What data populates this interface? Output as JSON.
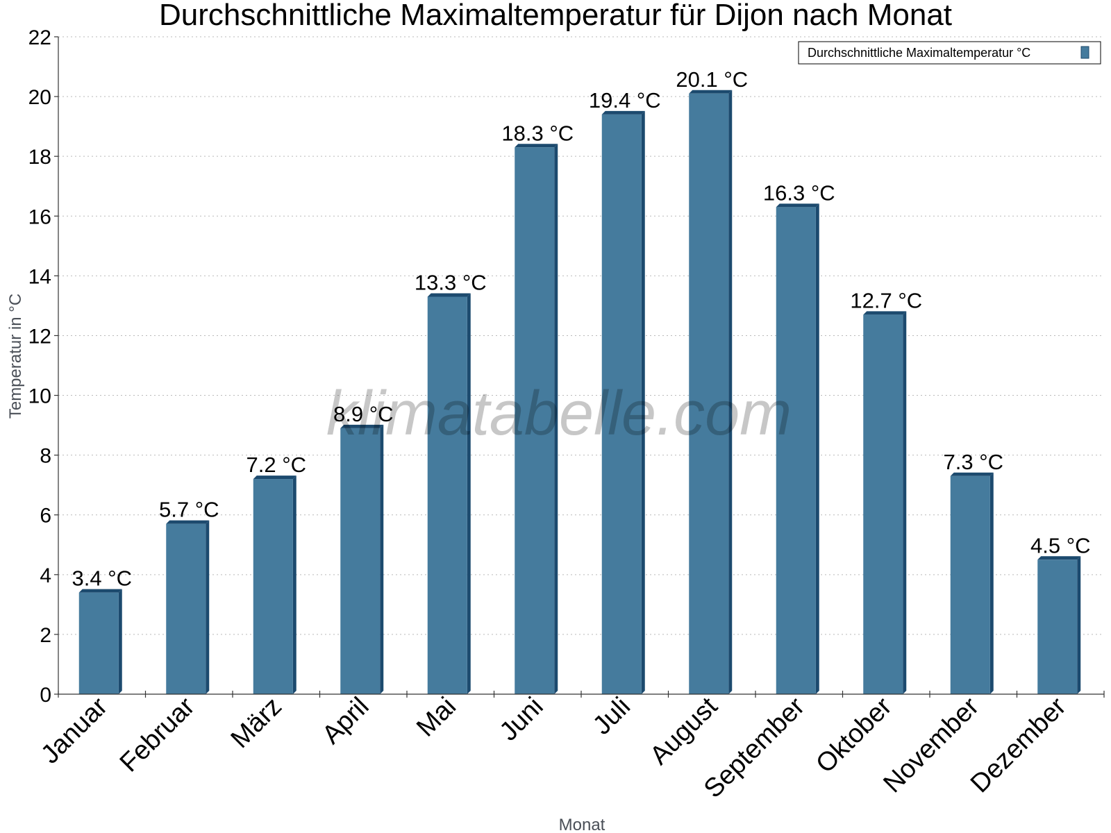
{
  "chart_data": {
    "type": "bar",
    "title": "Durchschnittliche Maximaltemperatur für Dijon nach Monat",
    "xlabel": "Monat",
    "ylabel": "Temperatur in °C",
    "ylim": [
      0,
      22
    ],
    "yticks": [
      "0",
      "2",
      "4",
      "6",
      "8",
      "10",
      "12",
      "14",
      "16",
      "18",
      "20",
      "22"
    ],
    "grid": true,
    "legend_position": "top-right",
    "categories": [
      "Januar",
      "Februar",
      "März",
      "April",
      "Mai",
      "Juni",
      "Juli",
      "August",
      "September",
      "Oktober",
      "November",
      "Dezember"
    ],
    "series": [
      {
        "name": "Durchschnittliche Maximaltemperatur °C",
        "color": "#457b9d",
        "values": [
          3.4,
          5.7,
          7.2,
          8.9,
          13.3,
          18.3,
          19.4,
          20.1,
          16.3,
          12.7,
          7.3,
          4.5
        ]
      }
    ],
    "data_labels": [
      "3.4 °C",
      "5.7 °C",
      "7.2 °C",
      "8.9 °C",
      "13.3 °C",
      "18.3 °C",
      "19.4 °C",
      "20.1 °C",
      "16.3 °C",
      "12.7 °C",
      "7.3 °C",
      "4.5 °C"
    ],
    "watermark": "klimatabelle.com"
  }
}
